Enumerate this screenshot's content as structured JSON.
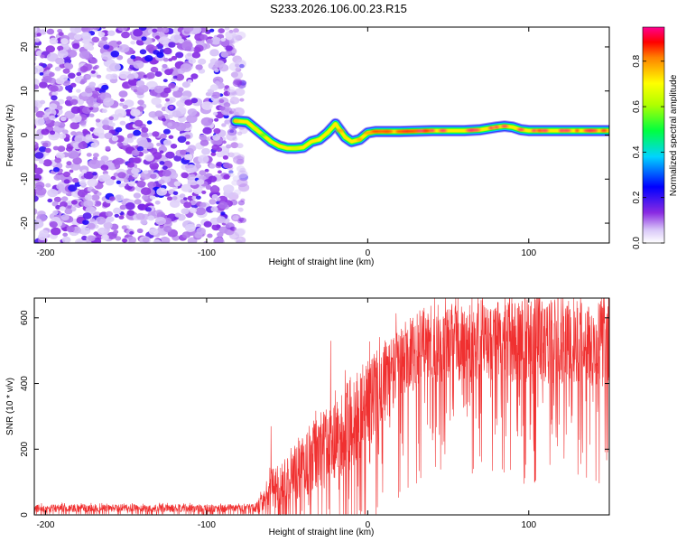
{
  "title": "S233.2026.106.00.23.R15",
  "chart_data": [
    {
      "type": "heatmap",
      "name": "spectrogram",
      "xlabel": "Height of straight line (km)",
      "ylabel": "Frequency (Hz)",
      "xlim": [
        -207,
        150
      ],
      "ylim": [
        -24.5,
        24.5
      ],
      "xticks": [
        -200,
        -100,
        0,
        100
      ],
      "yticks": [
        -20,
        -10,
        0,
        10,
        20
      ],
      "xtick_labels": [
        "-200",
        "-100",
        "0",
        "100"
      ],
      "ytick_labels": [
        "-20",
        "-10",
        "0",
        "10",
        "20"
      ],
      "noise_region_km": [
        -207,
        -79
      ],
      "ridge": {
        "x_km": [
          -82,
          -75,
          -70,
          -65,
          -60,
          -55,
          -50,
          -45,
          -40,
          -35,
          -30,
          -25,
          -20,
          -17,
          -14,
          -10,
          -5,
          0,
          5,
          10,
          20,
          30,
          40,
          50,
          60,
          70,
          80,
          85,
          90,
          95,
          100,
          110,
          120,
          130,
          140,
          150
        ],
        "freq_hz": [
          3.2,
          3.0,
          1.5,
          0,
          -1.5,
          -2.5,
          -3,
          -3,
          -2.8,
          -1.5,
          -1,
          0.5,
          2.5,
          1,
          -0.5,
          -1.5,
          -1,
          0.5,
          0.8,
          0.8,
          0.8,
          0.9,
          1,
          1,
          1,
          1.2,
          1.8,
          2.0,
          1.8,
          1.2,
          1,
          1,
          1,
          1,
          1,
          1
        ],
        "amplitude": [
          0.75,
          0.7,
          0.55,
          0.5,
          0.5,
          0.55,
          0.55,
          0.6,
          0.65,
          0.6,
          0.6,
          0.65,
          0.7,
          0.7,
          0.7,
          0.75,
          0.8,
          0.8,
          0.85,
          0.85,
          0.85,
          0.85,
          0.9,
          0.9,
          0.9,
          0.92,
          0.92,
          0.92,
          0.92,
          0.9,
          0.9,
          0.9,
          0.9,
          0.9,
          0.9,
          0.9
        ]
      },
      "colorbar": {
        "label": "Normalized spectral amplitude",
        "range": [
          0.0,
          0.95
        ],
        "ticks": [
          0.0,
          0.2,
          0.4,
          0.6,
          0.8
        ],
        "tick_labels": [
          "0.0",
          "0.2",
          "0.4",
          "0.6",
          "0.8"
        ]
      }
    },
    {
      "type": "line",
      "name": "snr",
      "xlabel": "Height of straight line (km)",
      "ylabel": "SNR (10 * v/v)",
      "xlim": [
        -207,
        150
      ],
      "ylim": [
        0,
        660
      ],
      "xticks": [
        -200,
        -100,
        0,
        100
      ],
      "yticks": [
        0,
        200,
        400,
        600
      ],
      "xtick_labels": [
        "-200",
        "-100",
        "0",
        "100"
      ],
      "ytick_labels": [
        "0",
        "200",
        "400",
        "600"
      ],
      "color": "#f03030",
      "envelope": {
        "x": [
          -207,
          -80,
          -70,
          -65,
          -60,
          -55,
          -50,
          -45,
          -40,
          -30,
          -20,
          -10,
          0,
          10,
          20,
          30,
          40,
          60,
          100,
          150
        ],
        "mean": [
          20,
          20,
          20,
          40,
          75,
          95,
          115,
          135,
          150,
          190,
          230,
          280,
          340,
          400,
          460,
          500,
          520,
          520,
          530,
          520
        ],
        "amp": [
          12,
          12,
          15,
          30,
          60,
          70,
          80,
          90,
          100,
          120,
          130,
          140,
          140,
          130,
          120,
          120,
          120,
          120,
          130,
          130
        ]
      },
      "spikes": [
        {
          "x": -60,
          "y": 270
        },
        {
          "x": -23,
          "y": 530
        },
        {
          "x": 35,
          "y": 630
        },
        {
          "x": 88,
          "y": 660
        },
        {
          "x": 128,
          "y": 660
        }
      ]
    }
  ]
}
